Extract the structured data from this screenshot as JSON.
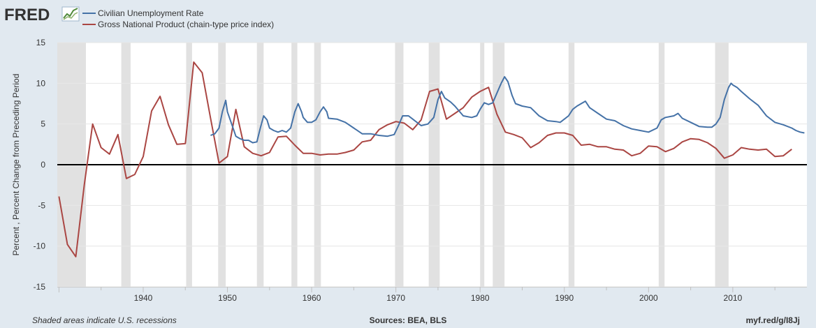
{
  "logo": {
    "text": "FRED"
  },
  "legend": {
    "items": [
      {
        "label": "Civilian Unemployment Rate",
        "color": "#4572a7"
      },
      {
        "label": "Gross National Product (chain-type price index)",
        "color": "#aa4643"
      }
    ]
  },
  "footer": {
    "note": "Shaded areas indicate U.S. recessions",
    "sources": "Sources: BEA, BLS",
    "link": "myf.red/g/I8Jj"
  },
  "chart_data": {
    "type": "line",
    "title": "",
    "xlabel": "",
    "ylabel": "Percent , Percent Change from Preceding Period",
    "xlim": [
      1929.8,
      2018.8
    ],
    "ylim": [
      -15,
      15
    ],
    "yticks": [
      -15,
      -10,
      -5,
      0,
      5,
      10,
      15
    ],
    "xticks": [
      1940,
      1950,
      1960,
      1970,
      1980,
      1990,
      2000,
      2010
    ],
    "grid": true,
    "legend_position": "top-left",
    "recessions": [
      [
        1929.6,
        1933.2
      ],
      [
        1937.4,
        1938.5
      ],
      [
        1945.1,
        1945.8
      ],
      [
        1948.9,
        1949.8
      ],
      [
        1953.5,
        1954.3
      ],
      [
        1957.6,
        1958.3
      ],
      [
        1960.3,
        1961.1
      ],
      [
        1969.9,
        1970.9
      ],
      [
        1973.9,
        1975.2
      ],
      [
        1980.0,
        1980.5
      ],
      [
        1981.5,
        1982.9
      ],
      [
        1990.5,
        1991.2
      ],
      [
        2001.2,
        2001.9
      ],
      [
        2007.9,
        2009.5
      ]
    ],
    "series": [
      {
        "name": "Civilian Unemployment Rate",
        "color": "#4572a7",
        "x": [
          1948.0,
          1948.5,
          1949.0,
          1949.4,
          1949.8,
          1950.0,
          1950.5,
          1951.0,
          1951.5,
          1952.0,
          1952.5,
          1953.0,
          1953.5,
          1953.9,
          1954.3,
          1954.7,
          1955.0,
          1955.5,
          1956.0,
          1956.5,
          1957.0,
          1957.5,
          1958.0,
          1958.4,
          1958.8,
          1959.0,
          1959.5,
          1960.0,
          1960.5,
          1961.0,
          1961.4,
          1961.8,
          1962.0,
          1963.0,
          1964.0,
          1965.0,
          1966.0,
          1967.0,
          1968.0,
          1969.0,
          1969.8,
          1970.3,
          1970.8,
          1971.5,
          1972.0,
          1973.0,
          1973.8,
          1974.5,
          1975.0,
          1975.4,
          1975.8,
          1976.5,
          1977.0,
          1978.0,
          1979.0,
          1979.6,
          1980.0,
          1980.5,
          1981.0,
          1981.5,
          1982.0,
          1982.5,
          1982.9,
          1983.3,
          1983.8,
          1984.2,
          1985.0,
          1986.0,
          1987.0,
          1988.0,
          1989.0,
          1989.5,
          1990.0,
          1990.5,
          1991.0,
          1991.5,
          1992.0,
          1992.5,
          1993.0,
          1994.0,
          1995.0,
          1996.0,
          1997.0,
          1998.0,
          1999.0,
          2000.0,
          2001.0,
          2001.5,
          2002.0,
          2003.0,
          2003.5,
          2004.0,
          2005.0,
          2006.0,
          2007.0,
          2007.5,
          2008.0,
          2008.5,
          2009.0,
          2009.5,
          2009.8,
          2010.0,
          2010.5,
          2011.0,
          2012.0,
          2013.0,
          2014.0,
          2015.0,
          2016.0,
          2017.0,
          2017.5,
          2018.0,
          2018.5
        ],
        "values": [
          3.6,
          3.8,
          4.5,
          6.5,
          7.9,
          6.5,
          5.0,
          3.5,
          3.2,
          3.0,
          3.0,
          2.7,
          2.8,
          4.5,
          6.0,
          5.5,
          4.5,
          4.2,
          4.0,
          4.2,
          4.0,
          4.5,
          6.5,
          7.5,
          6.5,
          5.8,
          5.2,
          5.2,
          5.5,
          6.5,
          7.1,
          6.5,
          5.7,
          5.6,
          5.2,
          4.5,
          3.8,
          3.8,
          3.6,
          3.5,
          3.7,
          4.8,
          6.0,
          6.0,
          5.6,
          4.8,
          5.0,
          5.8,
          8.0,
          9.0,
          8.2,
          7.7,
          7.2,
          6.0,
          5.8,
          6.0,
          6.8,
          7.6,
          7.4,
          7.6,
          8.8,
          10.0,
          10.8,
          10.2,
          8.5,
          7.5,
          7.2,
          7.0,
          6.0,
          5.4,
          5.3,
          5.2,
          5.6,
          6.0,
          6.8,
          7.2,
          7.5,
          7.8,
          7.0,
          6.3,
          5.6,
          5.4,
          4.8,
          4.4,
          4.2,
          4.0,
          4.5,
          5.5,
          5.8,
          6.0,
          6.3,
          5.7,
          5.2,
          4.7,
          4.6,
          4.6,
          5.0,
          5.8,
          8.0,
          9.5,
          10.0,
          9.8,
          9.5,
          9.0,
          8.1,
          7.3,
          6.0,
          5.2,
          4.9,
          4.5,
          4.2,
          4.0,
          3.9
        ]
      },
      {
        "name": "Gross National Product (chain-type price index)",
        "color": "#aa4643",
        "x": [
          1930,
          1931,
          1932,
          1933,
          1934,
          1935,
          1936,
          1937,
          1938,
          1939,
          1940,
          1941,
          1942,
          1943,
          1944,
          1945,
          1946,
          1947,
          1948,
          1949,
          1950,
          1951,
          1952,
          1953,
          1954,
          1955,
          1956,
          1957,
          1958,
          1959,
          1960,
          1961,
          1962,
          1963,
          1964,
          1965,
          1966,
          1967,
          1968,
          1969,
          1970,
          1971,
          1972,
          1973,
          1974,
          1975,
          1976,
          1977,
          1978,
          1979,
          1980,
          1981,
          1982,
          1983,
          1984,
          1985,
          1986,
          1987,
          1988,
          1989,
          1990,
          1991,
          1992,
          1993,
          1994,
          1995,
          1996,
          1997,
          1998,
          1999,
          2000,
          2001,
          2002,
          2003,
          2004,
          2005,
          2006,
          2007,
          2008,
          2009,
          2010,
          2011,
          2012,
          2013,
          2014,
          2015,
          2016,
          2017
        ],
        "values": [
          -3.9,
          -9.8,
          -11.3,
          -2.5,
          5.0,
          2.1,
          1.3,
          3.7,
          -1.7,
          -1.2,
          1.0,
          6.6,
          8.4,
          4.9,
          2.5,
          2.6,
          12.6,
          11.3,
          5.7,
          0.2,
          1.0,
          6.8,
          2.2,
          1.4,
          1.1,
          1.5,
          3.4,
          3.5,
          2.4,
          1.4,
          1.4,
          1.2,
          1.3,
          1.3,
          1.5,
          1.8,
          2.8,
          3.0,
          4.3,
          4.9,
          5.3,
          5.1,
          4.3,
          5.5,
          9.0,
          9.3,
          5.6,
          6.3,
          7.0,
          8.3,
          9.0,
          9.5,
          6.2,
          4.0,
          3.7,
          3.3,
          2.1,
          2.7,
          3.6,
          3.9,
          3.9,
          3.6,
          2.4,
          2.5,
          2.2,
          2.2,
          1.9,
          1.8,
          1.1,
          1.4,
          2.3,
          2.2,
          1.6,
          2.0,
          2.8,
          3.2,
          3.1,
          2.7,
          2.0,
          0.8,
          1.2,
          2.1,
          1.9,
          1.8,
          1.9,
          1.0,
          1.1,
          1.9
        ]
      }
    ]
  }
}
